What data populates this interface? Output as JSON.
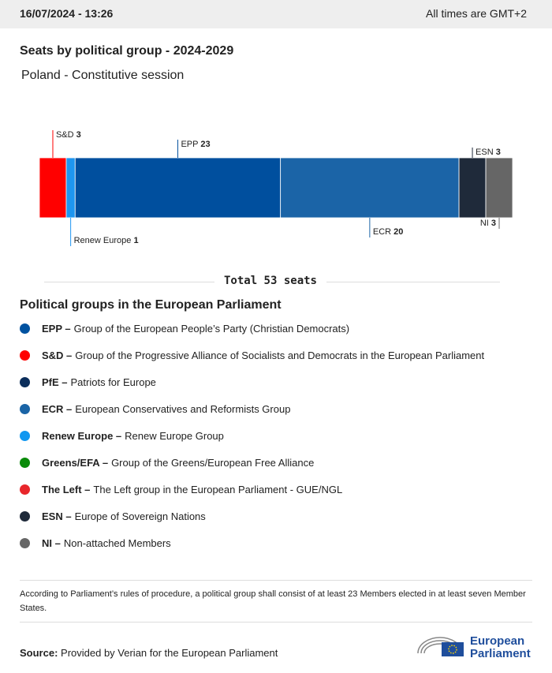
{
  "header": {
    "timestamp": "16/07/2024 - 13:26",
    "timezone": "All times are GMT+2"
  },
  "chart_data": {
    "type": "stacked-bar",
    "title": "Seats by political group - 2024-2029",
    "subtitle": "Poland - Constitutive session",
    "total_label": "Total 53 seats",
    "xlim": [
      0,
      53
    ],
    "series": [
      {
        "name": "S&D",
        "color": "#ff0000",
        "values": [
          3
        ]
      },
      {
        "name": "Renew Europe",
        "color": "#1e96f0",
        "values": [
          1
        ]
      },
      {
        "name": "EPP",
        "color": "#004f9e",
        "values": [
          23
        ]
      },
      {
        "name": "ECR",
        "color": "#1b64a7",
        "values": [
          20
        ]
      },
      {
        "name": "ESN",
        "color": "#1f2a3a",
        "values": [
          3
        ]
      },
      {
        "name": "NI",
        "color": "#666666",
        "values": [
          3
        ]
      }
    ]
  },
  "groups": {
    "title": "Political groups in the European Parliament",
    "items": [
      {
        "abbr": "EPP –",
        "description": "Group of the European People’s Party (Christian Democrats)",
        "color": "#0052a0"
      },
      {
        "abbr": "S&D –",
        "description": "Group of the Progressive Alliance of Socialists and Democrats in the European Parliament",
        "color": "#ff0000"
      },
      {
        "abbr": "PfE –",
        "description": "Patriots for Europe",
        "color": "#0b2e5b"
      },
      {
        "abbr": "ECR –",
        "description": "European Conservatives and Reformists Group",
        "color": "#1a64a6"
      },
      {
        "abbr": "Renew Europe –",
        "description": "Renew Europe Group",
        "color": "#1197f0"
      },
      {
        "abbr": "Greens/EFA –",
        "description": "Group of the Greens/European Free Alliance",
        "color": "#0a8b0a"
      },
      {
        "abbr": "The Left –",
        "description": "The Left group in the European Parliament - GUE/NGL",
        "color": "#e8262b"
      },
      {
        "abbr": "ESN –",
        "description": "Europe of Sovereign Nations",
        "color": "#1f2a3a"
      },
      {
        "abbr": "NI –",
        "description": "Non-attached Members",
        "color": "#666666"
      }
    ]
  },
  "note": "According to Parliament’s rules of procedure, a political group shall consist of at least 23 Members elected in at least seven Member States.",
  "source": {
    "label": "Source:",
    "text": "Provided by Verian for the European Parliament"
  },
  "logo": {
    "line1": "European",
    "line2": "Parliament"
  }
}
